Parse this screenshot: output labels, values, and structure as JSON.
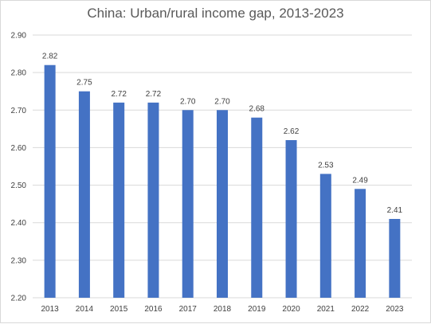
{
  "chart_data": {
    "type": "bar",
    "title": "China: Urban/rural income gap, 2013-2023",
    "categories": [
      "2013",
      "2014",
      "2015",
      "2016",
      "2017",
      "2018",
      "2019",
      "2020",
      "2021",
      "2022",
      "2023"
    ],
    "values": [
      2.82,
      2.75,
      2.72,
      2.72,
      2.7,
      2.7,
      2.68,
      2.62,
      2.53,
      2.49,
      2.41
    ],
    "data_labels": [
      "2.82",
      "2.75",
      "2.72",
      "2.72",
      "2.70",
      "2.70",
      "2.68",
      "2.62",
      "2.53",
      "2.49",
      "2.41"
    ],
    "ylim": [
      2.2,
      2.9
    ],
    "yticks": [
      "2.20",
      "2.30",
      "2.40",
      "2.50",
      "2.60",
      "2.70",
      "2.80",
      "2.90"
    ],
    "xlabel": "",
    "ylabel": "",
    "grid": true,
    "legend": "none",
    "bar_color": "#4472c4",
    "grid_color": "#d9d9d9"
  }
}
